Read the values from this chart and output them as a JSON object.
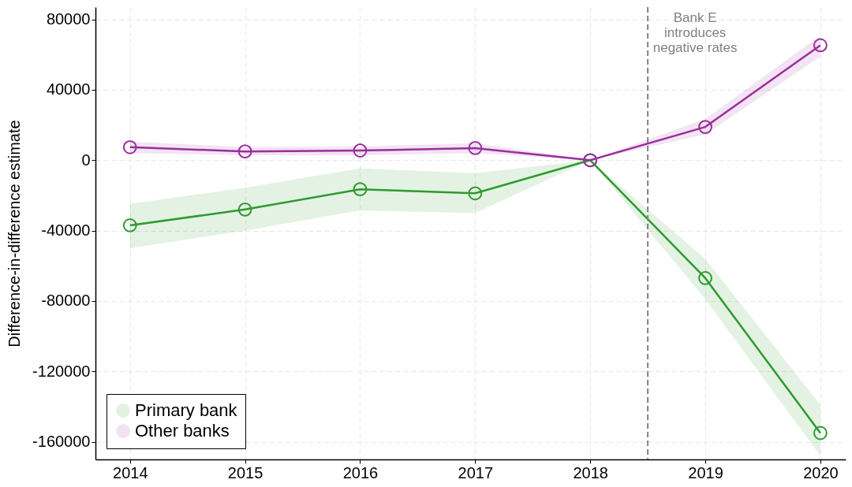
{
  "chart_data": {
    "type": "line",
    "ylabel": "Difference-in-difference estimate",
    "x": [
      2014,
      2015,
      2016,
      2017,
      2018,
      2019,
      2020
    ],
    "xlim": [
      2013.7,
      2020.22
    ],
    "xticks": [
      2014,
      2015,
      2016,
      2017,
      2018,
      2019,
      2020
    ],
    "ylim": [
      -170000,
      87000
    ],
    "yticks": [
      -160000,
      -120000,
      -80000,
      -40000,
      0,
      40000,
      80000
    ],
    "grid": true,
    "legend": "bottom left",
    "marker": "circle",
    "line_style": "solid",
    "ref_lines": [
      {
        "axis": "x",
        "value": 2018.5,
        "label": "Bank E\nintroduces\nnegative rates",
        "color": "#808080",
        "line_style": "dashed"
      }
    ],
    "series": [
      {
        "name": "Primary bank",
        "color": "#2e9a2e",
        "values": [
          -37000,
          -28000,
          -16500,
          -18800,
          0,
          -67000,
          -155000
        ],
        "lower": [
          -50000,
          -40000,
          -28500,
          -30000,
          0,
          -79000,
          -168000
        ],
        "upper": [
          -24800,
          -15600,
          -4600,
          -7400,
          0,
          -56000,
          -139000
        ]
      },
      {
        "name": "Other banks",
        "color": "#9a2e9e",
        "values": [
          7400,
          5000,
          5500,
          6900,
          0,
          18900,
          65300
        ],
        "lower": [
          4100,
          2800,
          2800,
          4100,
          0,
          14700,
          58900
        ],
        "upper": [
          10600,
          7400,
          7800,
          9700,
          0,
          23400,
          70800
        ]
      }
    ]
  }
}
